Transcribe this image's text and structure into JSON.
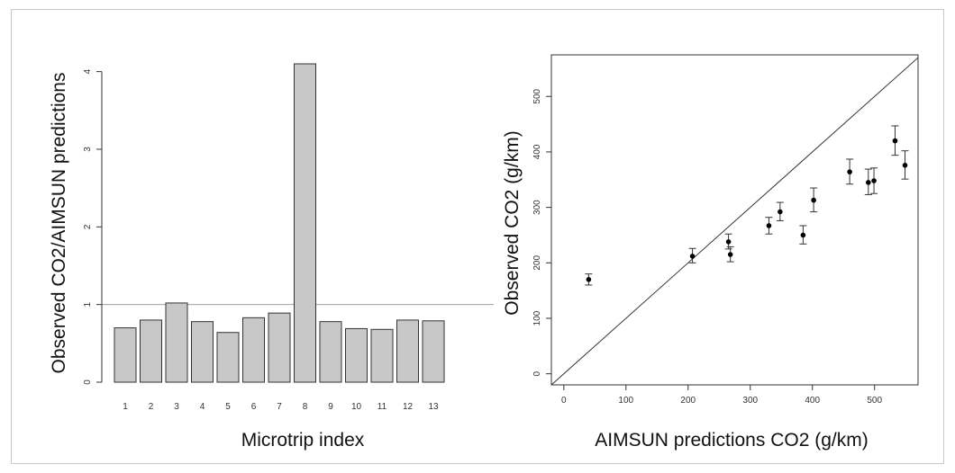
{
  "chart_data": [
    {
      "type": "bar",
      "xlabel": "Microtrip index",
      "ylabel": "Observed CO2/AIMSUN predictions",
      "categories": [
        "1",
        "2",
        "3",
        "4",
        "5",
        "6",
        "7",
        "8",
        "9",
        "10",
        "11",
        "12",
        "13"
      ],
      "values": [
        0.7,
        0.8,
        1.02,
        0.78,
        0.64,
        0.83,
        0.89,
        4.1,
        0.78,
        0.69,
        0.68,
        0.8,
        0.79
      ],
      "ylim": [
        0,
        4.1
      ],
      "yticks": [
        "0",
        "1",
        "2",
        "3",
        "4"
      ],
      "reference_line": 1,
      "colors": {
        "bar": "#c8c8c8",
        "bar_edge": "#333333",
        "reference_line": "#a0a0a0"
      }
    },
    {
      "type": "scatter",
      "xlabel": "AIMSUN predictions CO2 (g/km)",
      "ylabel": "Observed CO2 (g/km)",
      "xlim": [
        -20,
        570
      ],
      "ylim": [
        -20,
        575
      ],
      "xticks": [
        "0",
        "100",
        "200",
        "300",
        "400",
        "500"
      ],
      "yticks": [
        "0",
        "100",
        "200",
        "300",
        "400",
        "500"
      ],
      "diagonal_line": "y = x",
      "points": [
        {
          "x": 40,
          "y": 170,
          "err_low": 160,
          "err_high": 180
        },
        {
          "x": 207,
          "y": 212,
          "err_low": 200,
          "err_high": 226
        },
        {
          "x": 265,
          "y": 238,
          "err_low": 225,
          "err_high": 252
        },
        {
          "x": 268,
          "y": 215,
          "err_low": 202,
          "err_high": 229
        },
        {
          "x": 330,
          "y": 267,
          "err_low": 252,
          "err_high": 282
        },
        {
          "x": 348,
          "y": 292,
          "err_low": 276,
          "err_high": 309
        },
        {
          "x": 385,
          "y": 250,
          "err_low": 234,
          "err_high": 267
        },
        {
          "x": 402,
          "y": 313,
          "err_low": 292,
          "err_high": 335
        },
        {
          "x": 460,
          "y": 364,
          "err_low": 342,
          "err_high": 387
        },
        {
          "x": 490,
          "y": 345,
          "err_low": 323,
          "err_high": 369
        },
        {
          "x": 499,
          "y": 348,
          "err_low": 325,
          "err_high": 371
        },
        {
          "x": 533,
          "y": 420,
          "err_low": 394,
          "err_high": 447
        },
        {
          "x": 549,
          "y": 376,
          "err_low": 351,
          "err_high": 402
        }
      ],
      "colors": {
        "point": "#000000",
        "line": "#333333"
      }
    }
  ]
}
